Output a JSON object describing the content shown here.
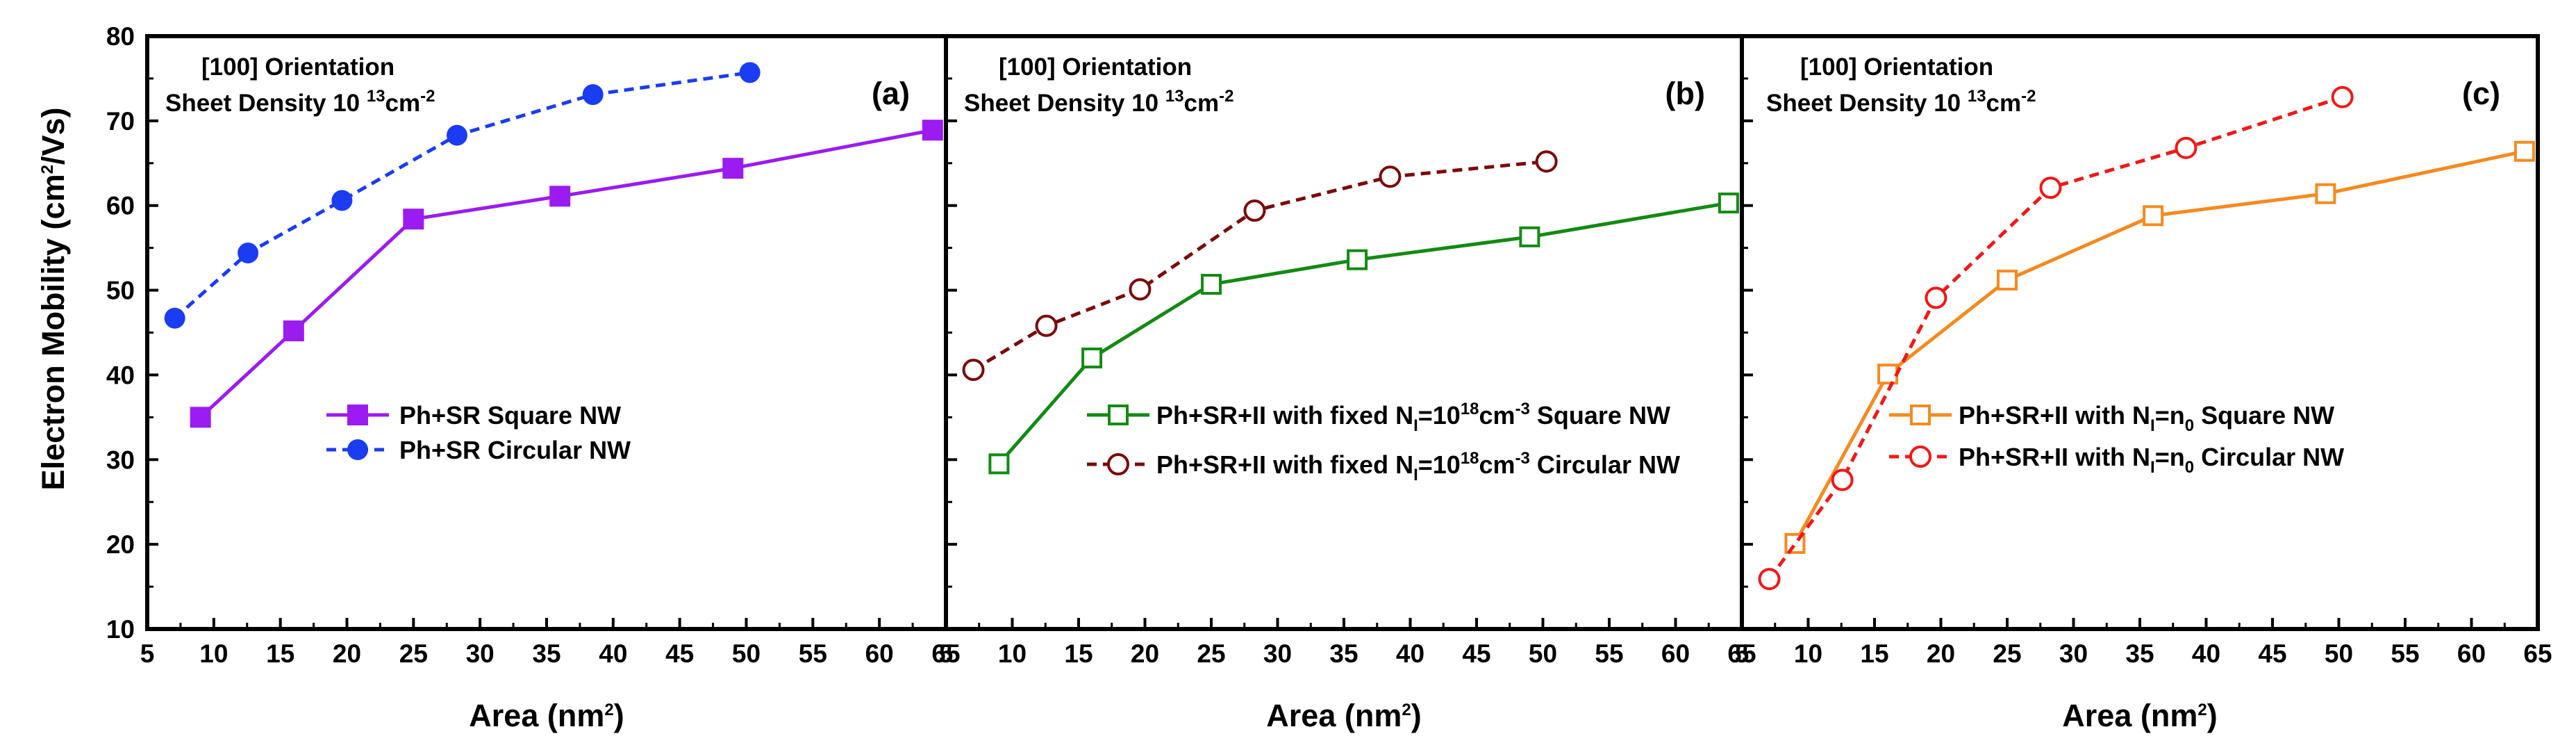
{
  "chart_data": {
    "type": "line",
    "ylabel_parts": {
      "main": "Electron Mobility  (cm",
      "sup": "2",
      "tail": "/Vs)"
    },
    "xlabel_parts": {
      "main": "Area (nm",
      "sup": "2",
      "tail": ")"
    },
    "xlim": [
      5,
      65
    ],
    "ylim": [
      10,
      80
    ],
    "xticks": [
      5,
      10,
      15,
      20,
      25,
      30,
      35,
      40,
      45,
      50,
      55,
      60,
      65
    ],
    "yticks": [
      10,
      20,
      30,
      40,
      50,
      60,
      70,
      80
    ],
    "panels": [
      {
        "label": "(a)",
        "orientation": "[100] Orientation",
        "density_parts": {
          "main": "Sheet Density 10 ",
          "sup1": "13",
          "mid": "cm",
          "sup2": "-2"
        },
        "series": [
          {
            "name_parts": {
              "main": "Ph+SR Square NW"
            },
            "color": "#9b1bf0",
            "line": "solid",
            "marker": "square",
            "filled": true,
            "x": [
              9,
              16,
              25,
              36,
              49,
              64
            ],
            "y": [
              35.0,
              45.2,
              58.4,
              61.1,
              64.4,
              68.9
            ]
          },
          {
            "name_parts": {
              "main": "Ph+SR Circular NW"
            },
            "color": "#1a3cf2",
            "line": "dash",
            "marker": "circle",
            "filled": true,
            "x": [
              7.07,
              12.57,
              19.63,
              28.27,
              38.48,
              50.27
            ],
            "y": [
              46.7,
              54.4,
              60.6,
              68.3,
              73.1,
              75.7
            ]
          }
        ]
      },
      {
        "label": "(b)",
        "orientation": "[100] Orientation",
        "density_parts": {
          "main": "Sheet Density 10 ",
          "sup1": "13",
          "mid": "cm",
          "sup2": "-2"
        },
        "series": [
          {
            "name_parts": {
              "main": "Ph+SR+II with fixed N",
              "sub": "I",
              "mid": "=10",
              "sup": "18",
              "tail": "cm",
              "sup2": "-3",
              "tail2": " Square NW"
            },
            "color": "#138a13",
            "line": "solid",
            "marker": "square",
            "filled": false,
            "x": [
              9,
              16,
              25,
              36,
              49,
              64
            ],
            "y": [
              29.5,
              42.0,
              50.7,
              53.6,
              56.3,
              60.3
            ]
          },
          {
            "name_parts": {
              "main": "Ph+SR+II with fixed N",
              "sub": "I",
              "mid": "=10",
              "sup": "18",
              "tail": "cm",
              "sup2": "-3",
              "tail2": " Circular NW"
            },
            "color": "#7a0a0a",
            "line": "dash",
            "marker": "circle",
            "filled": false,
            "x": [
              7.07,
              12.57,
              19.63,
              28.27,
              38.48,
              50.27
            ],
            "y": [
              40.6,
              45.8,
              50.1,
              59.4,
              63.4,
              65.2
            ]
          }
        ]
      },
      {
        "label": "(c)",
        "orientation": "[100] Orientation",
        "density_parts": {
          "main": "Sheet Density 10 ",
          "sup1": "13",
          "mid": "cm",
          "sup2": "-2"
        },
        "series": [
          {
            "name_parts": {
              "main": "Ph+SR+II with N",
              "sub": "I",
              "mid": "=n",
              "sub2": "0",
              "tail": " Square NW"
            },
            "color": "#f58a1f",
            "line": "solid",
            "marker": "square",
            "filled": false,
            "x": [
              9,
              16,
              25,
              36,
              49,
              64
            ],
            "y": [
              20.1,
              40.1,
              51.2,
              58.8,
              61.4,
              66.4
            ]
          },
          {
            "name_parts": {
              "main": "Ph+SR+II with N",
              "sub": "I",
              "mid": "=n",
              "sub2": "0",
              "tail": " Circular NW"
            },
            "color": "#f01818",
            "line": "dash",
            "marker": "circle",
            "filled": false,
            "x": [
              7.07,
              12.57,
              19.63,
              28.27,
              38.48,
              50.27
            ],
            "y": [
              15.9,
              27.6,
              49.1,
              62.1,
              66.8,
              72.8
            ]
          }
        ]
      }
    ]
  }
}
